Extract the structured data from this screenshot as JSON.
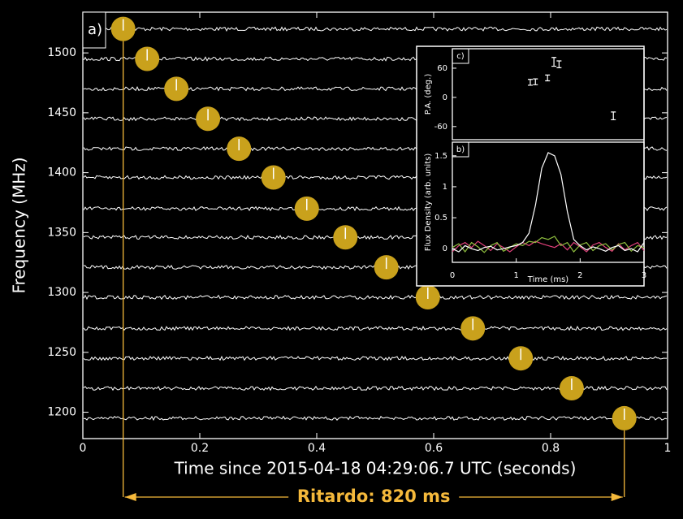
{
  "chart_data": [
    {
      "type": "scatter",
      "label": "a)",
      "xlabel": "Time since 2015-04-18 04:29:06.7 UTC (seconds)",
      "ylabel": "Frequency (MHz)",
      "annotation": "Ritardo: 820 ms",
      "x": [
        0.069,
        0.11,
        0.16,
        0.214,
        0.267,
        0.326,
        0.383,
        0.449,
        0.519,
        0.59,
        0.667,
        0.749,
        0.836,
        0.926
      ],
      "y": [
        1520,
        1495,
        1470,
        1445,
        1420,
        1396,
        1370,
        1346,
        1321,
        1296,
        1270,
        1245,
        1220,
        1195
      ],
      "color": "#c9a11c",
      "xlim": [
        0,
        1
      ],
      "ylim": [
        1178,
        1534
      ],
      "xticks": [
        0,
        0.2,
        0.4,
        0.6,
        0.8,
        1
      ],
      "yticks": [
        1200,
        1250,
        1300,
        1350,
        1400,
        1450,
        1500
      ]
    },
    {
      "type": "errorbar",
      "label": "c)",
      "ylabel": "P.A. (deg.)",
      "x": [
        1.22,
        1.3,
        1.49,
        1.59,
        1.67,
        2.52
      ],
      "values": [
        31,
        32,
        40,
        73,
        68,
        -38
      ],
      "errors": [
        6,
        6,
        6,
        9,
        7,
        8
      ],
      "color": "#ffffff",
      "xlim": [
        0,
        3
      ],
      "ylim": [
        -87,
        100
      ],
      "yticks": [
        -60,
        0,
        60
      ]
    },
    {
      "type": "line",
      "label": "b)",
      "xlabel": "Time (ms)",
      "ylabel": "Flux Density (arb. units)",
      "x": [
        0,
        0.1,
        0.2,
        0.3,
        0.4,
        0.5,
        0.6,
        0.7,
        0.8,
        0.9,
        1,
        1.1,
        1.2,
        1.3,
        1.4,
        1.5,
        1.6,
        1.7,
        1.8,
        1.9,
        2,
        2.1,
        2.2,
        2.3,
        2.4,
        2.5,
        2.6,
        2.7,
        2.8,
        2.9,
        3
      ],
      "series": [
        {
          "color": "#ffffff",
          "values": [
            0,
            -0.05,
            0.05,
            0,
            -0.03,
            0.02,
            0.04,
            -0.02,
            0,
            0.03,
            0.05,
            0.1,
            0.25,
            0.7,
            1.3,
            1.55,
            1.5,
            1.2,
            0.6,
            0.15,
            0.05,
            -0.02,
            0.03,
            0,
            -0.04,
            0.02,
            0.05,
            -0.03,
            0,
            -0.05,
            0.1
          ]
        },
        {
          "color": "#8fbf3f",
          "values": [
            0.02,
            0.08,
            -0.05,
            0.1,
            0.03,
            -0.06,
            0.05,
            0.1,
            -0.04,
            0.02,
            0.08,
            0.05,
            0.12,
            0.1,
            0.18,
            0.15,
            0.2,
            0.05,
            0.1,
            -0.05,
            0.06,
            0.1,
            -0.03,
            0.05,
            0.08,
            -0.02,
            0.07,
            0.1,
            -0.04,
            0.05,
            0.02
          ]
        },
        {
          "color": "#e0407a",
          "values": [
            -0.05,
            0.05,
            0.1,
            0.02,
            0.12,
            0.05,
            -0.03,
            0.08,
            0.02,
            -0.05,
            0.03,
            0.1,
            0.05,
            0.12,
            0.08,
            0.05,
            0.02,
            0.08,
            -0.02,
            0.1,
            0.03,
            -0.05,
            0.06,
            0.1,
            0.02,
            -0.04,
            0.08,
            -0.02,
            0.05,
            0.1,
            -0.03
          ]
        }
      ],
      "xlim": [
        0,
        3
      ],
      "ylim": [
        -0.22,
        1.72
      ],
      "xticks": [
        0,
        1,
        2,
        3
      ],
      "yticks": [
        0,
        0.5,
        1,
        1.5
      ]
    }
  ]
}
